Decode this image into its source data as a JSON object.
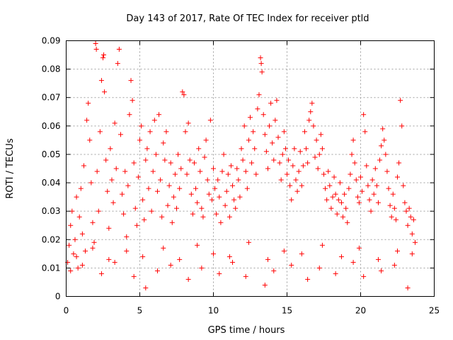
{
  "chart_data": {
    "type": "scatter",
    "title": "Day 143 of 2017, Rate Of TEC Index for receiver ptld",
    "xlabel": "GPS time / hours",
    "ylabel": "ROTI / TECUs",
    "xlim": [
      0,
      25
    ],
    "ylim": [
      0,
      0.09
    ],
    "x_ticks": [
      0,
      5,
      10,
      15,
      20,
      25
    ],
    "y_ticks": [
      0,
      0.01,
      0.02,
      0.03,
      0.04,
      0.05,
      0.06,
      0.07,
      0.08,
      0.09
    ],
    "x_tick_labels": [
      "0",
      "5",
      "10",
      "15",
      "20",
      "25"
    ],
    "y_tick_labels": [
      "0",
      "0.01",
      "0.02",
      "0.03",
      "0.04",
      "0.05",
      "0.06",
      "0.07",
      "0.08",
      "0.09"
    ],
    "grid": true,
    "marker": "+",
    "color": "#ff0000",
    "series": [
      {
        "name": "ROTI",
        "points": [
          [
            0.1,
            0.012
          ],
          [
            0.2,
            0.018
          ],
          [
            0.3,
            0.025
          ],
          [
            0.4,
            0.03
          ],
          [
            0.5,
            0.015
          ],
          [
            0.6,
            0.02
          ],
          [
            0.7,
            0.035
          ],
          [
            0.8,
            0.01
          ],
          [
            0.9,
            0.028
          ],
          [
            1.0,
            0.038
          ],
          [
            1.1,
            0.022
          ],
          [
            1.2,
            0.046
          ],
          [
            1.3,
            0.016
          ],
          [
            1.4,
            0.062
          ],
          [
            1.5,
            0.068
          ],
          [
            1.6,
            0.055
          ],
          [
            1.7,
            0.04
          ],
          [
            1.8,
            0.026
          ],
          [
            1.9,
            0.019
          ],
          [
            2.0,
            0.089
          ],
          [
            2.05,
            0.087
          ],
          [
            2.1,
            0.044
          ],
          [
            2.2,
            0.03
          ],
          [
            2.3,
            0.058
          ],
          [
            2.4,
            0.076
          ],
          [
            2.5,
            0.084
          ],
          [
            2.55,
            0.085
          ],
          [
            2.6,
            0.072
          ],
          [
            2.7,
            0.048
          ],
          [
            2.8,
            0.037
          ],
          [
            2.9,
            0.024
          ],
          [
            3.0,
            0.052
          ],
          [
            3.1,
            0.041
          ],
          [
            3.2,
            0.033
          ],
          [
            3.3,
            0.061
          ],
          [
            3.4,
            0.045
          ],
          [
            3.5,
            0.082
          ],
          [
            3.6,
            0.087
          ],
          [
            3.7,
            0.057
          ],
          [
            3.8,
            0.036
          ],
          [
            3.9,
            0.029
          ],
          [
            4.0,
            0.044
          ],
          [
            4.1,
            0.021
          ],
          [
            4.2,
            0.039
          ],
          [
            4.3,
            0.064
          ],
          [
            4.4,
            0.076
          ],
          [
            4.5,
            0.069
          ],
          [
            4.6,
            0.047
          ],
          [
            4.7,
            0.031
          ],
          [
            4.8,
            0.025
          ],
          [
            4.9,
            0.042
          ],
          [
            5.0,
            0.055
          ],
          [
            5.1,
            0.06
          ],
          [
            5.2,
            0.034
          ],
          [
            5.3,
            0.027
          ],
          [
            5.4,
            0.048
          ],
          [
            5.5,
            0.052
          ],
          [
            5.6,
            0.038
          ],
          [
            5.7,
            0.058
          ],
          [
            5.8,
            0.03
          ],
          [
            5.9,
            0.044
          ],
          [
            6.0,
            0.062
          ],
          [
            6.1,
            0.05
          ],
          [
            6.2,
            0.037
          ],
          [
            6.3,
            0.064
          ],
          [
            6.4,
            0.041
          ],
          [
            6.5,
            0.028
          ],
          [
            6.6,
            0.054
          ],
          [
            6.7,
            0.048
          ],
          [
            6.8,
            0.058
          ],
          [
            6.9,
            0.032
          ],
          [
            7.0,
            0.039
          ],
          [
            7.1,
            0.047
          ],
          [
            7.2,
            0.026
          ],
          [
            7.3,
            0.035
          ],
          [
            7.4,
            0.043
          ],
          [
            7.5,
            0.031
          ],
          [
            7.6,
            0.05
          ],
          [
            7.7,
            0.038
          ],
          [
            7.8,
            0.045
          ],
          [
            7.9,
            0.072
          ],
          [
            8.0,
            0.071
          ],
          [
            8.1,
            0.058
          ],
          [
            8.2,
            0.043
          ],
          [
            8.3,
            0.061
          ],
          [
            8.4,
            0.048
          ],
          [
            8.5,
            0.036
          ],
          [
            8.6,
            0.029
          ],
          [
            8.7,
            0.047
          ],
          [
            8.8,
            0.038
          ],
          [
            8.9,
            0.033
          ],
          [
            9.0,
            0.052
          ],
          [
            9.1,
            0.044
          ],
          [
            9.2,
            0.031
          ],
          [
            9.3,
            0.028
          ],
          [
            9.4,
            0.049
          ],
          [
            9.5,
            0.055
          ],
          [
            9.6,
            0.041
          ],
          [
            9.7,
            0.036
          ],
          [
            9.8,
            0.062
          ],
          [
            9.9,
            0.034
          ],
          [
            10.0,
            0.045
          ],
          [
            10.1,
            0.038
          ],
          [
            10.2,
            0.029
          ],
          [
            10.3,
            0.041
          ],
          [
            10.4,
            0.035
          ],
          [
            10.5,
            0.026
          ],
          [
            10.6,
            0.044
          ],
          [
            10.7,
            0.05
          ],
          [
            10.8,
            0.032
          ],
          [
            10.9,
            0.037
          ],
          [
            11.0,
            0.043
          ],
          [
            11.1,
            0.028
          ],
          [
            11.2,
            0.046
          ],
          [
            11.3,
            0.039
          ],
          [
            11.4,
            0.034
          ],
          [
            11.5,
            0.031
          ],
          [
            11.6,
            0.045
          ],
          [
            11.7,
            0.041
          ],
          [
            11.8,
            0.035
          ],
          [
            11.9,
            0.052
          ],
          [
            12.0,
            0.048
          ],
          [
            12.1,
            0.06
          ],
          [
            12.2,
            0.044
          ],
          [
            12.3,
            0.038
          ],
          [
            12.4,
            0.055
          ],
          [
            12.5,
            0.063
          ],
          [
            12.6,
            0.047
          ],
          [
            12.7,
            0.058
          ],
          [
            12.8,
            0.052
          ],
          [
            12.9,
            0.043
          ],
          [
            13.0,
            0.066
          ],
          [
            13.1,
            0.071
          ],
          [
            13.2,
            0.084
          ],
          [
            13.25,
            0.082
          ],
          [
            13.3,
            0.079
          ],
          [
            13.4,
            0.064
          ],
          [
            13.5,
            0.057
          ],
          [
            13.6,
            0.051
          ],
          [
            13.7,
            0.045
          ],
          [
            13.8,
            0.06
          ],
          [
            13.9,
            0.068
          ],
          [
            14.0,
            0.054
          ],
          [
            14.1,
            0.048
          ],
          [
            14.2,
            0.062
          ],
          [
            14.3,
            0.069
          ],
          [
            14.4,
            0.056
          ],
          [
            14.5,
            0.047
          ],
          [
            14.6,
            0.041
          ],
          [
            14.7,
            0.05
          ],
          [
            14.8,
            0.058
          ],
          [
            14.9,
            0.052
          ],
          [
            15.0,
            0.043
          ],
          [
            15.1,
            0.048
          ],
          [
            15.2,
            0.039
          ],
          [
            15.3,
            0.034
          ],
          [
            15.4,
            0.046
          ],
          [
            15.5,
            0.052
          ],
          [
            15.6,
            0.041
          ],
          [
            15.7,
            0.037
          ],
          [
            15.8,
            0.044
          ],
          [
            15.9,
            0.051
          ],
          [
            16.0,
            0.039
          ],
          [
            16.1,
            0.046
          ],
          [
            16.2,
            0.058
          ],
          [
            16.3,
            0.052
          ],
          [
            16.4,
            0.047
          ],
          [
            16.5,
            0.062
          ],
          [
            16.6,
            0.065
          ],
          [
            16.7,
            0.068
          ],
          [
            16.8,
            0.06
          ],
          [
            16.9,
            0.049
          ],
          [
            17.0,
            0.055
          ],
          [
            17.1,
            0.045
          ],
          [
            17.2,
            0.05
          ],
          [
            17.3,
            0.057
          ],
          [
            17.4,
            0.052
          ],
          [
            17.5,
            0.043
          ],
          [
            17.6,
            0.038
          ],
          [
            17.7,
            0.034
          ],
          [
            17.8,
            0.044
          ],
          [
            17.9,
            0.039
          ],
          [
            18.0,
            0.031
          ],
          [
            18.1,
            0.035
          ],
          [
            18.2,
            0.042
          ],
          [
            18.3,
            0.036
          ],
          [
            18.4,
            0.029
          ],
          [
            18.5,
            0.034
          ],
          [
            18.6,
            0.04
          ],
          [
            18.7,
            0.033
          ],
          [
            18.8,
            0.028
          ],
          [
            18.9,
            0.036
          ],
          [
            19.0,
            0.031
          ],
          [
            19.1,
            0.026
          ],
          [
            19.2,
            0.038
          ],
          [
            19.3,
            0.043
          ],
          [
            19.4,
            0.05
          ],
          [
            19.5,
            0.055
          ],
          [
            19.6,
            0.047
          ],
          [
            19.7,
            0.041
          ],
          [
            19.8,
            0.035
          ],
          [
            19.9,
            0.033
          ],
          [
            20.0,
            0.042
          ],
          [
            20.1,
            0.037
          ],
          [
            20.2,
            0.064
          ],
          [
            20.3,
            0.058
          ],
          [
            20.4,
            0.046
          ],
          [
            20.5,
            0.039
          ],
          [
            20.6,
            0.034
          ],
          [
            20.7,
            0.03
          ],
          [
            20.8,
            0.041
          ],
          [
            20.9,
            0.036
          ],
          [
            21.0,
            0.045
          ],
          [
            21.1,
            0.039
          ],
          [
            21.2,
            0.033
          ],
          [
            21.3,
            0.048
          ],
          [
            21.4,
            0.053
          ],
          [
            21.5,
            0.059
          ],
          [
            21.6,
            0.055
          ],
          [
            21.7,
            0.05
          ],
          [
            21.8,
            0.044
          ],
          [
            21.9,
            0.038
          ],
          [
            22.0,
            0.032
          ],
          [
            22.1,
            0.028
          ],
          [
            22.2,
            0.036
          ],
          [
            22.3,
            0.031
          ],
          [
            22.4,
            0.027
          ],
          [
            22.5,
            0.042
          ],
          [
            22.6,
            0.047
          ],
          [
            22.7,
            0.069
          ],
          [
            22.8,
            0.06
          ],
          [
            22.9,
            0.039
          ],
          [
            23.0,
            0.033
          ],
          [
            23.1,
            0.03
          ],
          [
            23.2,
            0.025
          ],
          [
            23.3,
            0.031
          ],
          [
            23.4,
            0.028
          ],
          [
            23.5,
            0.022
          ],
          [
            23.6,
            0.027
          ],
          [
            23.7,
            0.019
          ],
          [
            0.3,
            0.009
          ],
          [
            1.1,
            0.011
          ],
          [
            2.4,
            0.008
          ],
          [
            3.3,
            0.012
          ],
          [
            4.6,
            0.007
          ],
          [
            5.4,
            0.003
          ],
          [
            6.2,
            0.009
          ],
          [
            7.1,
            0.011
          ],
          [
            8.3,
            0.006
          ],
          [
            9.2,
            0.01
          ],
          [
            10.4,
            0.008
          ],
          [
            11.3,
            0.012
          ],
          [
            12.2,
            0.007
          ],
          [
            13.5,
            0.004
          ],
          [
            14.1,
            0.009
          ],
          [
            15.3,
            0.011
          ],
          [
            16.4,
            0.006
          ],
          [
            17.2,
            0.01
          ],
          [
            18.3,
            0.008
          ],
          [
            19.5,
            0.012
          ],
          [
            20.2,
            0.007
          ],
          [
            21.4,
            0.009
          ],
          [
            22.3,
            0.011
          ],
          [
            23.2,
            0.003
          ],
          [
            0.7,
            0.014
          ],
          [
            1.8,
            0.017
          ],
          [
            2.9,
            0.013
          ],
          [
            4.1,
            0.016
          ],
          [
            5.2,
            0.014
          ],
          [
            6.6,
            0.017
          ],
          [
            7.7,
            0.013
          ],
          [
            8.9,
            0.018
          ],
          [
            10.0,
            0.015
          ],
          [
            11.1,
            0.014
          ],
          [
            12.4,
            0.019
          ],
          [
            13.7,
            0.013
          ],
          [
            14.8,
            0.016
          ],
          [
            16.0,
            0.015
          ],
          [
            17.4,
            0.018
          ],
          [
            18.7,
            0.014
          ],
          [
            19.9,
            0.017
          ],
          [
            21.2,
            0.013
          ],
          [
            22.5,
            0.016
          ],
          [
            23.5,
            0.015
          ]
        ]
      }
    ]
  }
}
